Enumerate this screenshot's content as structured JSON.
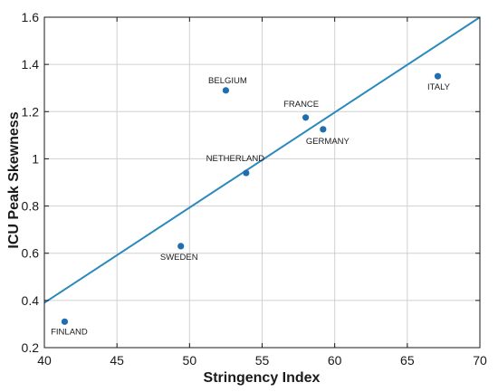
{
  "chart_data": {
    "type": "scatter",
    "title": "",
    "xlabel": "Stringency Index",
    "ylabel": "ICU Peak Skewness",
    "xlim": [
      40,
      70
    ],
    "ylim": [
      0.2,
      1.6
    ],
    "xticks": [
      40,
      45,
      50,
      55,
      60,
      65,
      70
    ],
    "yticks": [
      0.2,
      0.4,
      0.6,
      0.8,
      1,
      1.2,
      1.4,
      1.6
    ],
    "grid": true,
    "series": [
      {
        "points": [
          {
            "label": "BELGIUM",
            "x": 52.5,
            "y": 1.29
          },
          {
            "label": "FRANCE",
            "x": 58.0,
            "y": 1.175
          },
          {
            "label": "GERMANY",
            "x": 59.2,
            "y": 1.125
          },
          {
            "label": "ITALY",
            "x": 67.1,
            "y": 1.35
          },
          {
            "label": "NETHERLAND",
            "x": 53.9,
            "y": 0.94
          },
          {
            "label": "SWEDEN",
            "x": 49.4,
            "y": 0.63
          },
          {
            "label": "FINLAND",
            "x": 41.4,
            "y": 0.31
          }
        ]
      }
    ],
    "fit_line": {
      "x": [
        40,
        70
      ],
      "y": [
        0.39,
        1.6
      ]
    },
    "colors": {
      "marker": "#1f6fb0",
      "line": "#2a89bd",
      "grid": "#d0d0d0",
      "axes": "#1a1a1a"
    }
  }
}
